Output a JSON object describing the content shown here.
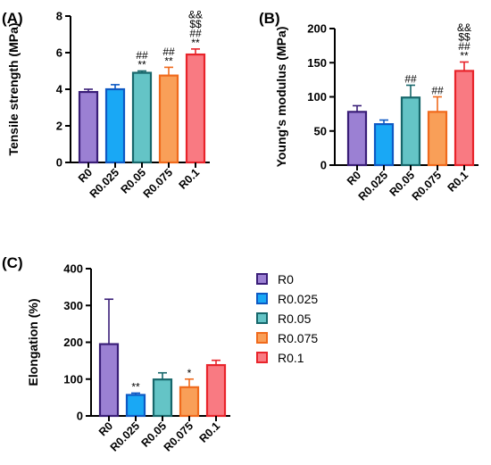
{
  "colors": {
    "R0": {
      "fill": "#9b80d3",
      "stroke": "#3a1e78"
    },
    "R0.025": {
      "fill": "#19a8f5",
      "stroke": "#0d59c4"
    },
    "R0.05": {
      "fill": "#64c4c6",
      "stroke": "#17676b"
    },
    "R0.075": {
      "fill": "#f99f58",
      "stroke": "#f06a1c"
    },
    "R0.1": {
      "fill": "#f97a82",
      "stroke": "#e8242b"
    }
  },
  "legend": {
    "position": "right",
    "items": [
      "R0",
      "R0.025",
      "R0.05",
      "R0.075",
      "R0.1"
    ]
  },
  "chart_data": [
    {
      "type": "bar",
      "panel_label": "(A)",
      "ylabel": "Tensile strength (MPa)",
      "xlabel": "",
      "categories": [
        "R0",
        "R0.025",
        "R0.05",
        "R0.075",
        "R0.1"
      ],
      "values": [
        3.85,
        4.0,
        4.9,
        4.75,
        5.9
      ],
      "errors": [
        0.15,
        0.25,
        0.1,
        0.45,
        0.3
      ],
      "ylim": [
        0,
        8
      ],
      "yticks": [
        "0",
        "2",
        "4",
        "6",
        "8"
      ],
      "annotations": [
        [],
        [],
        [
          "##",
          "**"
        ],
        [
          "##",
          "**"
        ],
        [
          "&&",
          "$$",
          "##",
          "**"
        ]
      ],
      "grid": false
    },
    {
      "type": "bar",
      "panel_label": "(B)",
      "ylabel": "Young's modulus (MPa)",
      "xlabel": "",
      "categories": [
        "R0",
        "R0.025",
        "R0.05",
        "R0.075",
        "R0.1"
      ],
      "values": [
        78,
        60,
        99,
        78,
        138
      ],
      "errors": [
        9,
        6,
        18,
        22,
        13
      ],
      "ylim": [
        0,
        200
      ],
      "yticks": [
        "0",
        "50",
        "100",
        "150",
        "200"
      ],
      "annotations": [
        [],
        [],
        [
          "##"
        ],
        [
          "##"
        ],
        [
          "&&",
          "$$",
          "##",
          "**"
        ]
      ],
      "grid": false
    },
    {
      "type": "bar",
      "panel_label": "(C)",
      "ylabel": "Elongation (%)",
      "xlabel": "",
      "categories": [
        "R0",
        "R0.025",
        "R0.05",
        "R0.075",
        "R0.1"
      ],
      "values": [
        195,
        57,
        99,
        78,
        138
      ],
      "errors": [
        122,
        5,
        18,
        22,
        13
      ],
      "ylim": [
        0,
        400
      ],
      "yticks": [
        "0",
        "100",
        "200",
        "300",
        "400"
      ],
      "annotations": [
        [],
        [
          "**"
        ],
        [],
        [
          "*"
        ],
        []
      ],
      "grid": false
    }
  ]
}
